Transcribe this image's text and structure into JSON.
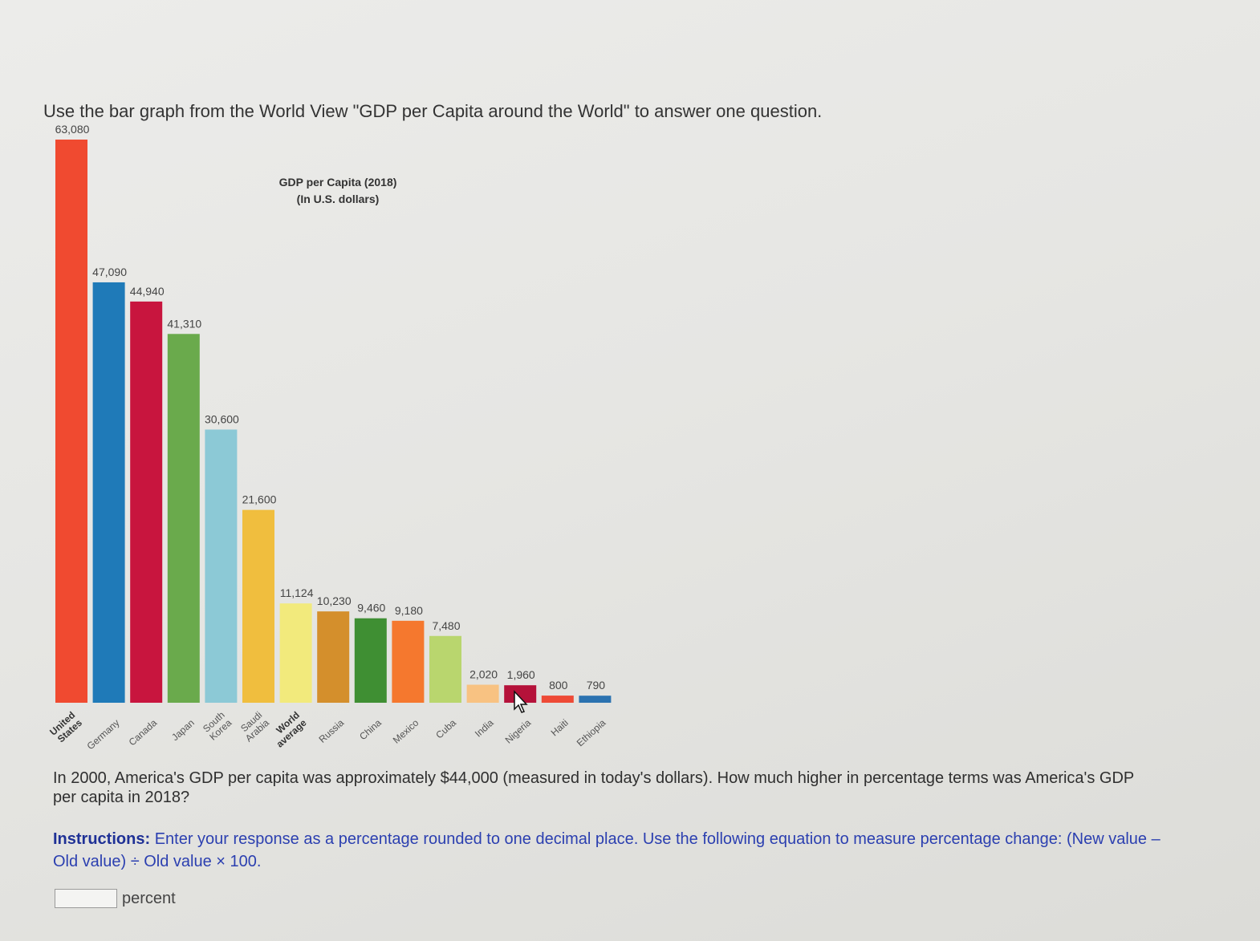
{
  "question_prompt": "Use the bar graph from the World View \"GDP per Capita around the World\" to answer one question.",
  "chart_data": {
    "type": "bar",
    "title": "GDP per Capita (2018)",
    "subtitle": "(In U.S. dollars)",
    "categories": [
      "United States",
      "Germany",
      "Canada",
      "Japan",
      "South Korea",
      "Saudi Arabia",
      "World average",
      "Russia",
      "China",
      "Mexico",
      "Cuba",
      "India",
      "Nigeria",
      "Haiti",
      "Ethiopia"
    ],
    "category_lines": [
      [
        "United",
        "States"
      ],
      [
        "Germany"
      ],
      [
        "Canada"
      ],
      [
        "Japan"
      ],
      [
        "South",
        "Korea"
      ],
      [
        "Saudi",
        "Arabia"
      ],
      [
        "World",
        "average"
      ],
      [
        "Russia"
      ],
      [
        "China"
      ],
      [
        "Mexico"
      ],
      [
        "Cuba"
      ],
      [
        "India"
      ],
      [
        "Nigeria"
      ],
      [
        "Haiti"
      ],
      [
        "Ethiopia"
      ]
    ],
    "values": [
      63080,
      47090,
      44940,
      41310,
      30600,
      21600,
      11124,
      10230,
      9460,
      9180,
      7480,
      2020,
      1960,
      800,
      790
    ],
    "value_labels": [
      "63,080",
      "47,090",
      "44,940",
      "41,310",
      "30,600",
      "21,600",
      "11,124",
      "10,230",
      "9,460",
      "9,180",
      "7,480",
      "2,020",
      "1,960",
      "800",
      "790"
    ],
    "bold_categories": [
      "United States",
      "World average"
    ],
    "colors": [
      "#f04a30",
      "#1f7ab8",
      "#c8153e",
      "#6aaa4c",
      "#8cc9d6",
      "#f0be3e",
      "#f2ea7c",
      "#d48f2c",
      "#3f8f33",
      "#f5782e",
      "#b9d66e",
      "#f8c282",
      "#b5123a",
      "#ee4a36",
      "#2b72b0"
    ],
    "ylim": [
      0,
      63080
    ],
    "grid": false,
    "legend": "none"
  },
  "question": {
    "text": "In 2000, America's GDP per capita was approximately $44,000 (measured in today's dollars). How much higher in percentage terms was America's GDP per capita in 2018?"
  },
  "instructions": {
    "lead": "Instructions:",
    "body": "Enter your response as a percentage rounded to one decimal place. Use the following equation to measure percentage change: (New value – Old value) ÷ Old value × 100."
  },
  "answer": {
    "value": "",
    "placeholder": "",
    "unit": "percent"
  }
}
